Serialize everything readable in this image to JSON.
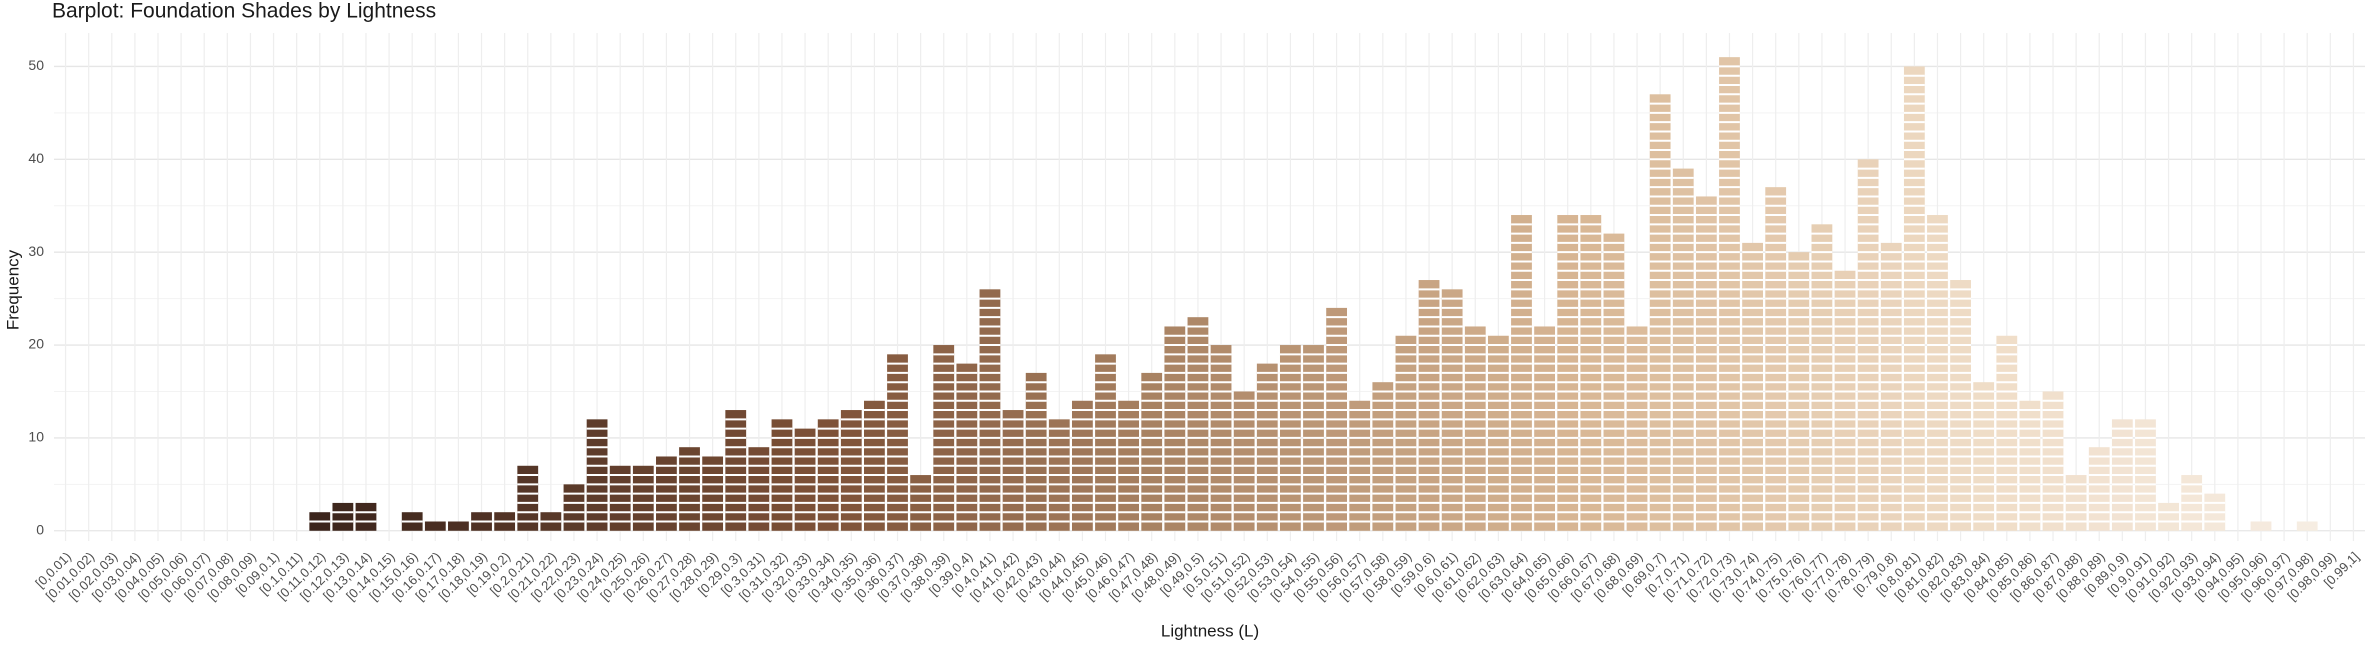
{
  "chart_data": {
    "type": "bar",
    "title": "Barplot: Foundation Shades by Lightness",
    "x_label": "Lightness (L)",
    "y_label": "Frequency",
    "categories": [
      "[0,0.01)",
      "[0.01,0.02)",
      "[0.02,0.03)",
      "[0.03,0.04)",
      "[0.04,0.05)",
      "[0.05,0.06)",
      "[0.06,0.07)",
      "[0.07,0.08)",
      "[0.08,0.09)",
      "[0.09,0.1)",
      "[0.1,0.11)",
      "[0.11,0.12)",
      "[0.12,0.13)",
      "[0.13,0.14)",
      "[0.14,0.15)",
      "[0.15,0.16)",
      "[0.16,0.17)",
      "[0.17,0.18)",
      "[0.18,0.19)",
      "[0.19,0.2)",
      "[0.2,0.21)",
      "[0.21,0.22)",
      "[0.22,0.23)",
      "[0.23,0.24)",
      "[0.24,0.25)",
      "[0.25,0.26)",
      "[0.26,0.27)",
      "[0.27,0.28)",
      "[0.28,0.29)",
      "[0.29,0.3)",
      "[0.3,0.31)",
      "[0.31,0.32)",
      "[0.32,0.33)",
      "[0.33,0.34)",
      "[0.34,0.35)",
      "[0.35,0.36)",
      "[0.36,0.37)",
      "[0.37,0.38)",
      "[0.38,0.39)",
      "[0.39,0.4)",
      "[0.4,0.41)",
      "[0.41,0.42)",
      "[0.42,0.43)",
      "[0.43,0.44)",
      "[0.44,0.45)",
      "[0.45,0.46)",
      "[0.46,0.47)",
      "[0.47,0.48)",
      "[0.48,0.49)",
      "[0.49,0.5)",
      "[0.5,0.51)",
      "[0.51,0.52)",
      "[0.52,0.53)",
      "[0.53,0.54)",
      "[0.54,0.55)",
      "[0.55,0.56)",
      "[0.56,0.57)",
      "[0.57,0.58)",
      "[0.58,0.59)",
      "[0.59,0.6)",
      "[0.6,0.61)",
      "[0.61,0.62)",
      "[0.62,0.63)",
      "[0.63,0.64)",
      "[0.64,0.65)",
      "[0.65,0.66)",
      "[0.66,0.67)",
      "[0.67,0.68)",
      "[0.68,0.69)",
      "[0.69,0.7)",
      "[0.7,0.71)",
      "[0.71,0.72)",
      "[0.72,0.73)",
      "[0.73,0.74)",
      "[0.74,0.75)",
      "[0.75,0.76)",
      "[0.76,0.77)",
      "[0.77,0.78)",
      "[0.78,0.79)",
      "[0.79,0.8)",
      "[0.8,0.81)",
      "[0.81,0.82)",
      "[0.82,0.83)",
      "[0.83,0.84)",
      "[0.84,0.85)",
      "[0.85,0.86)",
      "[0.86,0.87)",
      "[0.87,0.88)",
      "[0.88,0.89)",
      "[0.89,0.9)",
      "[0.9,0.91)",
      "[0.91,0.92)",
      "[0.92,0.93)",
      "[0.93,0.94)",
      "[0.94,0.95)",
      "[0.95,0.96)",
      "[0.96,0.97)",
      "[0.97,0.98)",
      "[0.98,0.99)",
      "[0.99,1]"
    ],
    "values": [
      0,
      0,
      0,
      0,
      0,
      0,
      0,
      0,
      0,
      0,
      0,
      2,
      3,
      3,
      0,
      2,
      1,
      1,
      2,
      2,
      7,
      2,
      5,
      12,
      7,
      7,
      8,
      9,
      8,
      13,
      9,
      12,
      11,
      12,
      13,
      14,
      19,
      6,
      20,
      18,
      26,
      13,
      17,
      12,
      14,
      19,
      14,
      17,
      22,
      23,
      20,
      15,
      18,
      20,
      20,
      24,
      14,
      16,
      21,
      27,
      26,
      22,
      21,
      34,
      22,
      34,
      34,
      32,
      22,
      47,
      39,
      36,
      51,
      31,
      37,
      30,
      33,
      28,
      40,
      31,
      50,
      34,
      27,
      16,
      21,
      14,
      15,
      6,
      9,
      12,
      12,
      3,
      6,
      4,
      0,
      1,
      0,
      1,
      0,
      0
    ],
    "color_scale": [
      "#1f130f",
      "#4a2e22",
      "#7e5238",
      "#b08a6a",
      "#d9b896",
      "#efdcc6",
      "#f7efe6"
    ],
    "ylim": [
      -1.1,
      53.6
    ],
    "yticks": [
      0,
      10,
      20,
      30,
      40,
      50
    ],
    "grid": true
  }
}
